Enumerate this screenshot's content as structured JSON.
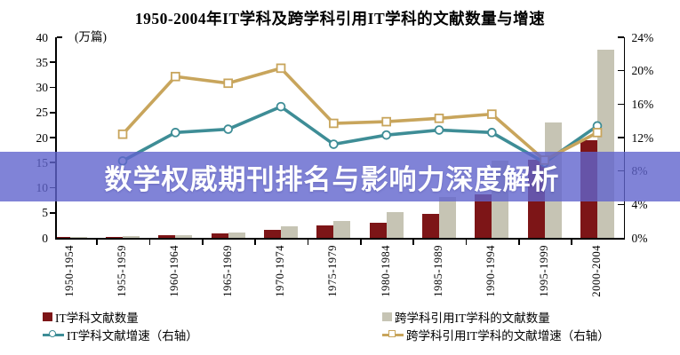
{
  "title": "1950-2004年IT学科及跨学科引用IT学科的文献数量与增速",
  "overlay": {
    "text": "数学权威期刊排名与影响力深度解析"
  },
  "left_axis": {
    "unit": "(万篇)",
    "ticks": [
      0,
      5,
      10,
      15,
      20,
      25,
      30,
      35,
      40
    ]
  },
  "right_axis": {
    "ticks": [
      "0%",
      "4%",
      "8%",
      "12%",
      "16%",
      "20%",
      "24%"
    ]
  },
  "colors": {
    "it_bar": "#7D1517",
    "cross_bar": "#C6C4B4",
    "it_line": "#3E8D96",
    "cross_line": "#C8A55C",
    "banner_bg": "rgba(96,100,205,0.8)",
    "banner_text": "#FFFFFF",
    "axis": "#000000"
  },
  "chart_data": {
    "type": "bar+line",
    "categories": [
      "1950-1954",
      "1955-1959",
      "1960-1964",
      "1965-1969",
      "1970-1974",
      "1975-1979",
      "1980-1984",
      "1985-1989",
      "1990-1994",
      "1995-1999",
      "2000-2004"
    ],
    "left_ylim": [
      0,
      40
    ],
    "right_ylim": [
      0,
      24
    ],
    "left_axis_unit": "万篇",
    "grid": "off",
    "legend_position": "bottom",
    "series": [
      {
        "name": "IT学科文献数量",
        "type": "bar",
        "axis": "left",
        "values": [
          0.05,
          0.2,
          0.5,
          0.8,
          1.6,
          2.4,
          3.0,
          4.8,
          8.7,
          15.6,
          19.5
        ]
      },
      {
        "name": "跨学科引用IT学科的文献数量",
        "type": "bar",
        "axis": "left",
        "values": [
          0.05,
          0.3,
          0.5,
          1.0,
          2.3,
          3.3,
          5.2,
          8.2,
          15.4,
          23.0,
          37.5
        ]
      },
      {
        "name": "IT学科文献增速（右轴）",
        "type": "line",
        "marker": "circle",
        "axis": "right",
        "values": [
          null,
          9.2,
          12.6,
          13.0,
          15.7,
          11.2,
          12.3,
          12.9,
          12.6,
          9.0,
          13.4
        ]
      },
      {
        "name": "跨学科引用IT学科的文献增速（右轴）",
        "type": "line",
        "marker": "square",
        "axis": "right",
        "values": [
          null,
          12.4,
          19.3,
          18.5,
          20.3,
          13.7,
          13.9,
          14.3,
          14.8,
          9.3,
          12.6
        ]
      }
    ]
  }
}
